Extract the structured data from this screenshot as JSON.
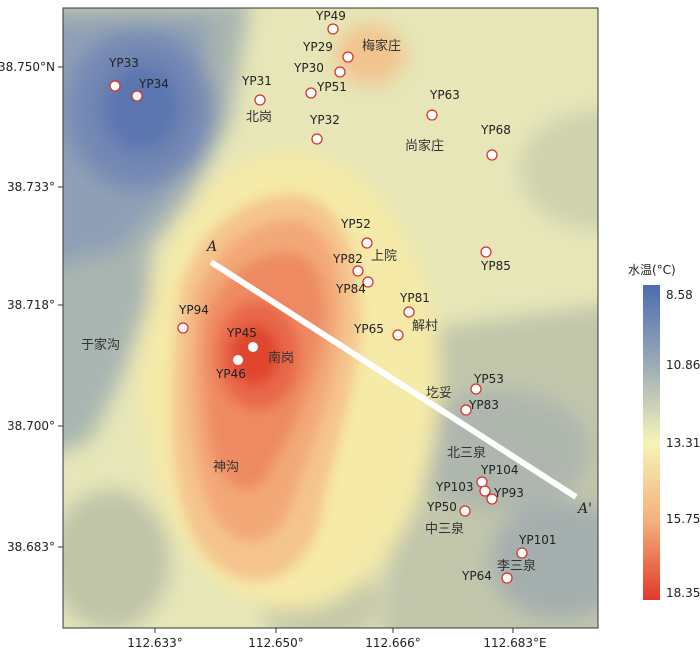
{
  "map": {
    "axes": {
      "x_ticks": [
        "112.633°",
        "112.650°",
        "112.666°",
        "112.683°E"
      ],
      "y_ticks": [
        "38.750°N",
        "38.733°",
        "38.718°",
        "38.700°",
        "38.683°"
      ]
    },
    "legend": {
      "title": "水温(°C)",
      "ticks": [
        "8.58",
        "10.86",
        "13.31",
        "15.75",
        "18.35"
      ],
      "colors": [
        "#4a6db0",
        "#9aaab8",
        "#f6f4b8",
        "#f4b07a",
        "#e0392a"
      ]
    },
    "profile": {
      "start_label": "A",
      "end_label": "A'"
    },
    "sites": [
      {
        "id": "YP49",
        "fill": "open"
      },
      {
        "id": "YP29",
        "fill": "open"
      },
      {
        "id": "YP30",
        "fill": "open"
      },
      {
        "id": "YP51",
        "fill": "open"
      },
      {
        "id": "YP31",
        "fill": "open"
      },
      {
        "id": "YP33",
        "fill": "open"
      },
      {
        "id": "YP34",
        "fill": "open"
      },
      {
        "id": "YP32",
        "fill": "open"
      },
      {
        "id": "YP63",
        "fill": "open"
      },
      {
        "id": "YP68",
        "fill": "open"
      },
      {
        "id": "YP52",
        "fill": "open"
      },
      {
        "id": "YP82",
        "fill": "open"
      },
      {
        "id": "YP84",
        "fill": "open"
      },
      {
        "id": "YP85",
        "fill": "open"
      },
      {
        "id": "YP81",
        "fill": "open"
      },
      {
        "id": "YP65",
        "fill": "open"
      },
      {
        "id": "YP94",
        "fill": "open"
      },
      {
        "id": "YP45",
        "fill": "solid"
      },
      {
        "id": "YP46",
        "fill": "solid"
      },
      {
        "id": "YP53",
        "fill": "open"
      },
      {
        "id": "YP83",
        "fill": "open"
      },
      {
        "id": "YP104",
        "fill": "open"
      },
      {
        "id": "YP103",
        "fill": "open"
      },
      {
        "id": "YP93",
        "fill": "open"
      },
      {
        "id": "YP50",
        "fill": "open"
      },
      {
        "id": "YP101",
        "fill": "open"
      },
      {
        "id": "YP64",
        "fill": "open"
      }
    ],
    "places": [
      "梅家庄",
      "北岗",
      "尚家庄",
      "上院",
      "解村",
      "于家沟",
      "南岗",
      "圪妥",
      "北三泉",
      "中三泉",
      "神沟",
      "李三泉"
    ]
  }
}
